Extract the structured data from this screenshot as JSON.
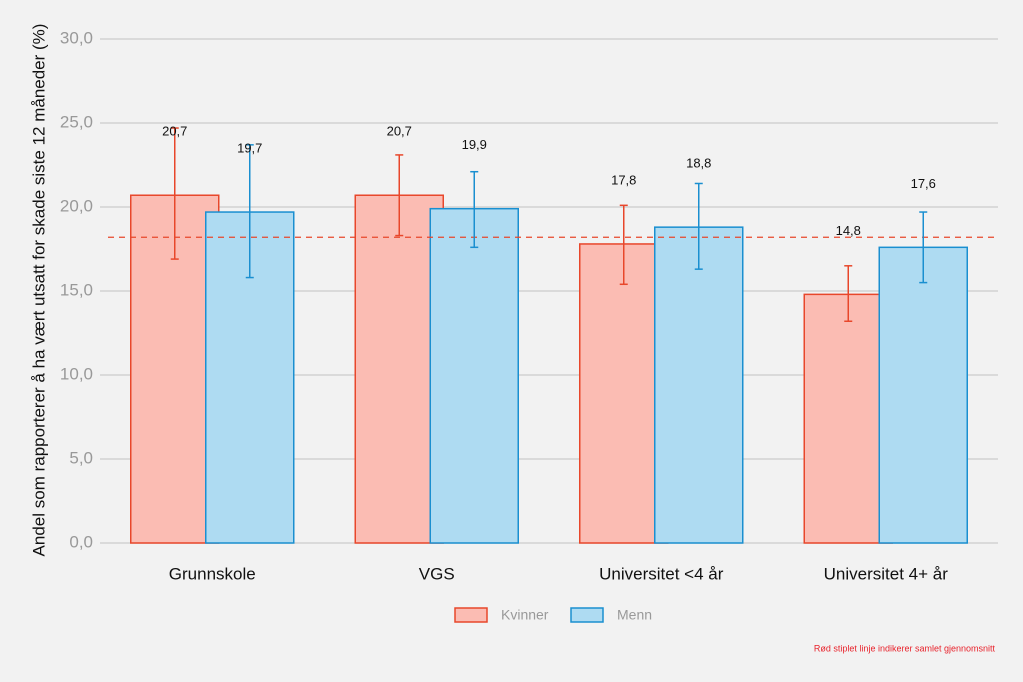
{
  "chart_data": {
    "type": "bar",
    "y_axis_label": "Andel som rapporterer å ha vært utsatt for skade siste 12 måneder (%)",
    "categories": [
      "Grunnskole",
      "VGS",
      "Universitet <4 år",
      "Universitet 4+ år"
    ],
    "series": [
      {
        "name": "Kvinner",
        "color": "#fbbcb3",
        "edge_color": "#e8472b",
        "values": [
          20.7,
          20.7,
          17.8,
          14.8
        ],
        "value_labels": [
          "20,7",
          "20,7",
          "17,8",
          "14,8"
        ],
        "ci_low": [
          16.9,
          18.3,
          15.4,
          13.2
        ],
        "ci_high": [
          24.7,
          23.1,
          20.1,
          16.5
        ]
      },
      {
        "name": "Menn",
        "color": "#aedbf2",
        "edge_color": "#1a8fd0",
        "values": [
          19.7,
          19.9,
          18.8,
          17.6
        ],
        "value_labels": [
          "19,7",
          "19,9",
          "18,8",
          "17,6"
        ],
        "ci_low": [
          15.8,
          17.6,
          16.3,
          15.5
        ],
        "ci_high": [
          23.7,
          22.1,
          21.4,
          19.7
        ]
      }
    ],
    "reference_line": {
      "value": 18.2,
      "color": "#e8472b",
      "note": "Rød stiplet linje indikerer samlet gjennomsnitt"
    },
    "ylim": [
      0,
      30
    ],
    "yticks": [
      {
        "value": 0,
        "label": "0,0"
      },
      {
        "value": 5,
        "label": "5,0"
      },
      {
        "value": 10,
        "label": "10,0"
      },
      {
        "value": 15,
        "label": "15,0"
      },
      {
        "value": 20,
        "label": "20,0"
      },
      {
        "value": 25,
        "label": "25,0"
      },
      {
        "value": 30,
        "label": "30,0"
      }
    ],
    "grid": true
  }
}
